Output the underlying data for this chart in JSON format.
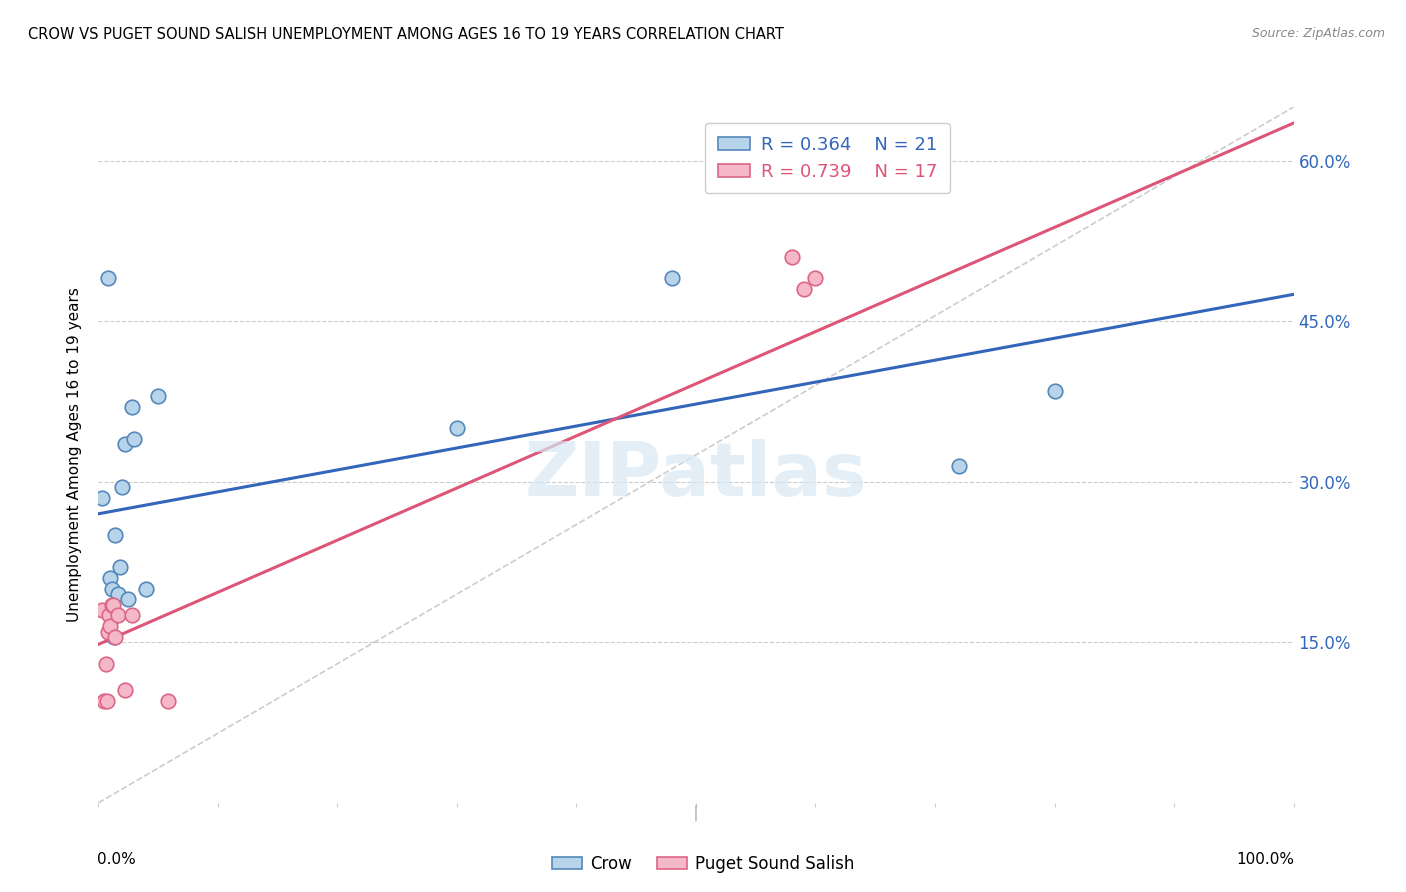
{
  "title": "CROW VS PUGET SOUND SALISH UNEMPLOYMENT AMONG AGES 16 TO 19 YEARS CORRELATION CHART",
  "source": "Source: ZipAtlas.com",
  "ylabel": "Unemployment Among Ages 16 to 19 years",
  "ytick_labels": [
    "15.0%",
    "30.0%",
    "45.0%",
    "60.0%"
  ],
  "ytick_values": [
    0.15,
    0.3,
    0.45,
    0.6
  ],
  "xlim": [
    0.0,
    1.0
  ],
  "ylim": [
    0.0,
    0.65
  ],
  "crow_color": "#b8d4ea",
  "crow_edge_color": "#5588bb",
  "puget_color": "#f4b8c8",
  "puget_edge_color": "#dd6688",
  "crow_line_color": "#3366bb",
  "puget_line_color": "#dd5577",
  "ref_line_color": "#cccccc",
  "legend_crow_r": "R = 0.364",
  "legend_crow_n": "N = 21",
  "legend_puget_r": "R = 0.739",
  "legend_puget_n": "N = 17",
  "watermark": "ZIPatlas",
  "crow_points_x": [
    0.003,
    0.008,
    0.01,
    0.011,
    0.012,
    0.013,
    0.014,
    0.015,
    0.016,
    0.018,
    0.02,
    0.022,
    0.025,
    0.028,
    0.03,
    0.04,
    0.05,
    0.3,
    0.48,
    0.72,
    0.8
  ],
  "crow_points_y": [
    0.285,
    0.49,
    0.21,
    0.2,
    0.18,
    0.155,
    0.25,
    0.175,
    0.195,
    0.22,
    0.295,
    0.335,
    0.19,
    0.37,
    0.34,
    0.2,
    0.38,
    0.35,
    0.49,
    0.315,
    0.385
  ],
  "puget_points_x": [
    0.003,
    0.005,
    0.006,
    0.007,
    0.008,
    0.009,
    0.01,
    0.011,
    0.012,
    0.014,
    0.016,
    0.022,
    0.028,
    0.058,
    0.58,
    0.59,
    0.6
  ],
  "puget_points_y": [
    0.18,
    0.095,
    0.13,
    0.095,
    0.16,
    0.175,
    0.165,
    0.185,
    0.185,
    0.155,
    0.175,
    0.105,
    0.175,
    0.095,
    0.51,
    0.48,
    0.49
  ],
  "crow_trend_x": [
    0.0,
    1.0
  ],
  "crow_trend_y": [
    0.27,
    0.475
  ],
  "puget_trend_x": [
    0.0,
    1.0
  ],
  "puget_trend_y": [
    0.148,
    0.635
  ],
  "ref_trend_x": [
    0.0,
    1.0
  ],
  "ref_trend_y": [
    0.0,
    0.65
  ]
}
